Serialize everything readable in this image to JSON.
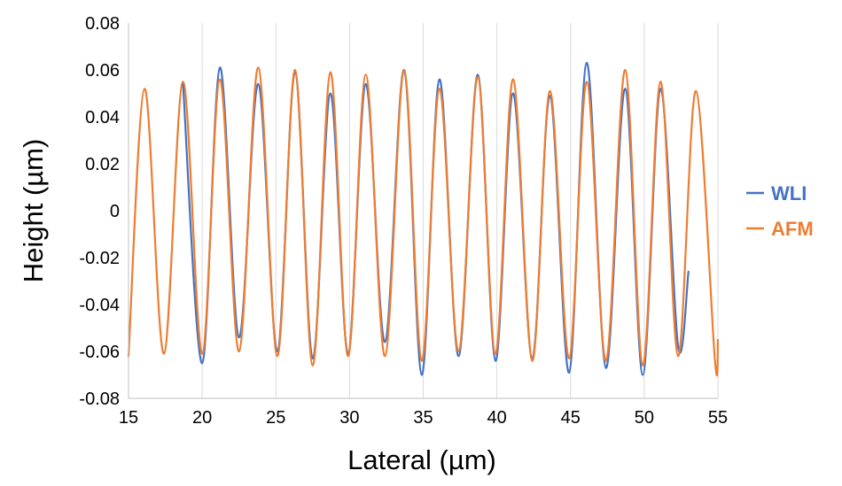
{
  "chart_data": {
    "type": "line",
    "xlabel": "Lateral (µm)",
    "ylabel": "Height (µm)",
    "xlim": [
      15,
      55
    ],
    "ylim": [
      -0.08,
      0.08
    ],
    "x_ticks": [
      "15",
      "20",
      "25",
      "30",
      "35",
      "40",
      "45",
      "50",
      "55"
    ],
    "y_ticks": [
      "0.08",
      "0.06",
      "0.04",
      "0.02",
      "0",
      "-0.02",
      "-0.04",
      "-0.06",
      "-0.08"
    ],
    "grid": "vertical",
    "legend_position": "right",
    "series": [
      {
        "name": "WLI",
        "color": "#4472C4",
        "x": [
          18.7,
          20.0,
          21.2,
          22.5,
          23.8,
          25.1,
          26.3,
          27.5,
          28.7,
          29.9,
          31.1,
          32.4,
          33.7,
          34.9,
          36.1,
          37.4,
          38.7,
          39.9,
          41.1,
          42.4,
          43.6,
          44.9,
          46.1,
          47.4,
          48.7,
          49.9,
          51.1,
          52.3,
          53.0
        ],
        "y": [
          0.054,
          -0.065,
          0.061,
          -0.054,
          0.054,
          -0.06,
          0.059,
          -0.063,
          0.05,
          -0.061,
          0.054,
          -0.056,
          0.06,
          -0.07,
          0.056,
          -0.062,
          0.058,
          -0.064,
          0.05,
          -0.063,
          0.049,
          -0.069,
          0.063,
          -0.067,
          0.052,
          -0.07,
          0.052,
          -0.058,
          -0.026
        ]
      },
      {
        "name": "AFM",
        "color": "#ED7D31",
        "x": [
          15.0,
          16.1,
          17.4,
          18.7,
          20.0,
          21.2,
          22.5,
          23.8,
          25.1,
          26.3,
          27.5,
          28.7,
          29.9,
          31.1,
          32.4,
          33.7,
          34.9,
          36.1,
          37.4,
          38.7,
          39.9,
          41.1,
          42.4,
          43.6,
          44.9,
          46.1,
          47.4,
          48.7,
          49.9,
          51.1,
          52.3,
          53.5,
          54.8,
          55.0
        ],
        "y": [
          -0.062,
          0.052,
          -0.061,
          0.055,
          -0.061,
          0.056,
          -0.06,
          0.061,
          -0.062,
          0.06,
          -0.066,
          0.059,
          -0.062,
          0.058,
          -0.062,
          0.06,
          -0.064,
          0.052,
          -0.06,
          0.057,
          -0.061,
          0.056,
          -0.064,
          0.051,
          -0.063,
          0.055,
          -0.064,
          0.06,
          -0.066,
          0.055,
          -0.062,
          0.051,
          -0.064,
          -0.055
        ]
      }
    ]
  }
}
